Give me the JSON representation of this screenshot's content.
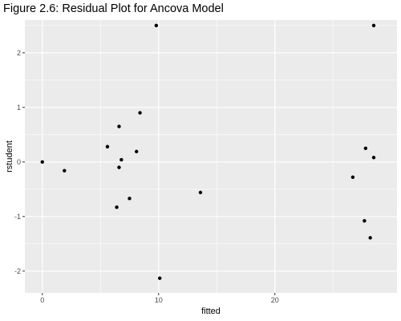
{
  "chart_data": {
    "type": "scatter",
    "title": "Figure 2.6: Residual Plot for Ancova Model",
    "xlabel": "fitted",
    "ylabel": "rstudent",
    "xlim": [
      -1.5,
      30.5
    ],
    "ylim": [
      -2.4,
      2.6
    ],
    "x_ticks": [
      0,
      10,
      20
    ],
    "y_ticks": [
      -2,
      -1,
      0,
      1,
      2
    ],
    "grid": true,
    "background": "#ebebeb",
    "grid_color": "#ffffff",
    "point_color": "#000000",
    "points": [
      {
        "x": 0.0,
        "y": 0.0
      },
      {
        "x": 1.9,
        "y": -0.16
      },
      {
        "x": 5.6,
        "y": 0.28
      },
      {
        "x": 6.4,
        "y": -0.83
      },
      {
        "x": 6.6,
        "y": 0.65
      },
      {
        "x": 6.6,
        "y": -0.1
      },
      {
        "x": 6.8,
        "y": 0.04
      },
      {
        "x": 7.5,
        "y": -0.67
      },
      {
        "x": 8.1,
        "y": 0.19
      },
      {
        "x": 8.4,
        "y": 0.9
      },
      {
        "x": 9.8,
        "y": 2.5
      },
      {
        "x": 10.1,
        "y": -2.13
      },
      {
        "x": 13.6,
        "y": -0.56
      },
      {
        "x": 26.7,
        "y": -0.28
      },
      {
        "x": 27.7,
        "y": -1.08
      },
      {
        "x": 27.8,
        "y": 0.25
      },
      {
        "x": 28.2,
        "y": -1.39
      },
      {
        "x": 28.5,
        "y": 2.5
      },
      {
        "x": 28.5,
        "y": 0.08
      }
    ]
  }
}
